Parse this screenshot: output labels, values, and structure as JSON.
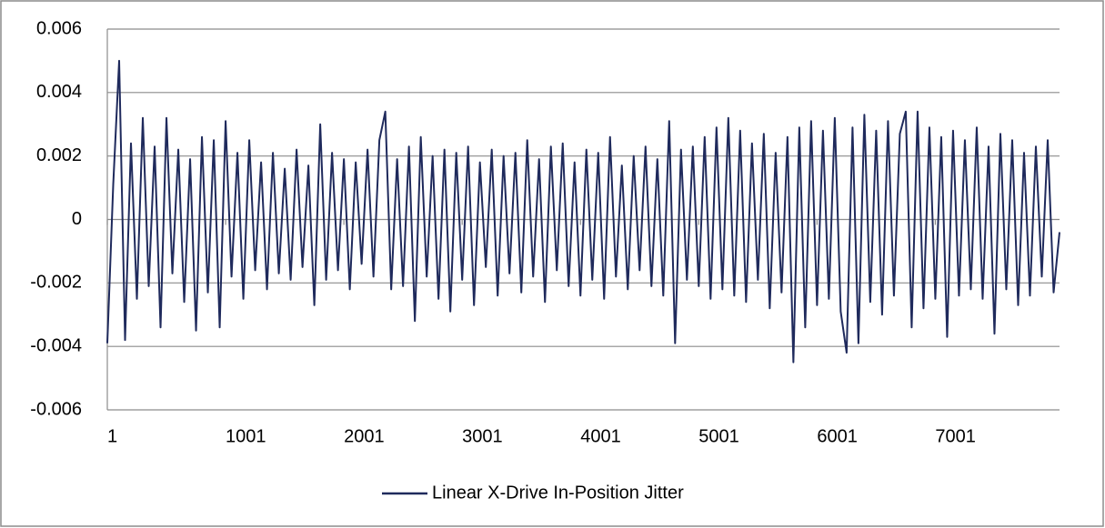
{
  "chart_data": {
    "type": "line",
    "x": [
      1,
      51,
      101,
      151,
      201,
      251,
      301,
      351,
      401,
      451,
      501,
      551,
      601,
      651,
      701,
      751,
      801,
      851,
      901,
      951,
      1001,
      1051,
      1101,
      1151,
      1201,
      1251,
      1301,
      1351,
      1401,
      1451,
      1501,
      1551,
      1601,
      1651,
      1701,
      1751,
      1801,
      1851,
      1901,
      1951,
      2001,
      2051,
      2101,
      2151,
      2201,
      2251,
      2301,
      2351,
      2401,
      2451,
      2501,
      2551,
      2601,
      2651,
      2701,
      2751,
      2801,
      2851,
      2901,
      2951,
      3001,
      3051,
      3101,
      3151,
      3201,
      3251,
      3301,
      3351,
      3401,
      3451,
      3501,
      3551,
      3601,
      3651,
      3701,
      3751,
      3801,
      3851,
      3901,
      3951,
      4001,
      4051,
      4101,
      4151,
      4201,
      4251,
      4301,
      4351,
      4401,
      4451,
      4501,
      4551,
      4601,
      4651,
      4701,
      4751,
      4801,
      4851,
      4901,
      4951,
      5001,
      5051,
      5101,
      5151,
      5201,
      5251,
      5301,
      5351,
      5401,
      5451,
      5501,
      5551,
      5601,
      5651,
      5701,
      5751,
      5801,
      5851,
      5901,
      5951,
      6001,
      6051,
      6101,
      6151,
      6201,
      6251,
      6301,
      6351,
      6401,
      6451,
      6501,
      6551,
      6601,
      6651,
      6701,
      6751,
      6801,
      6851,
      6901,
      6951,
      7001,
      7051,
      7101,
      7151,
      7201,
      7251,
      7301,
      7351,
      7401,
      7451,
      7501,
      7551,
      7601,
      7651,
      7701,
      7751,
      7801,
      7851,
      7901,
      7951,
      8001,
      8051
    ],
    "series": [
      {
        "name": "Linear X-Drive In-Position Jitter",
        "color": "#1f2a5c",
        "values": [
          -0.0039,
          0.0011,
          0.005,
          -0.0038,
          0.0024,
          -0.0025,
          0.0032,
          -0.0021,
          0.0023,
          -0.0034,
          0.0032,
          -0.0017,
          0.0022,
          -0.0026,
          0.0019,
          -0.0035,
          0.0026,
          -0.0023,
          0.0025,
          -0.0034,
          0.0031,
          -0.0018,
          0.0021,
          -0.0025,
          0.0025,
          -0.0016,
          0.0018,
          -0.0022,
          0.0021,
          -0.0017,
          0.0016,
          -0.0019,
          0.0022,
          -0.0015,
          0.0017,
          -0.0027,
          0.003,
          -0.0019,
          0.0021,
          -0.0016,
          0.0019,
          -0.0022,
          0.0018,
          -0.0014,
          0.0022,
          -0.0018,
          0.0025,
          0.0034,
          -0.0022,
          0.0019,
          -0.0021,
          0.0023,
          -0.0032,
          0.0026,
          -0.0018,
          0.002,
          -0.0025,
          0.0022,
          -0.0029,
          0.0021,
          -0.0019,
          0.0023,
          -0.0027,
          0.0018,
          -0.0015,
          0.0022,
          -0.0024,
          0.002,
          -0.0017,
          0.0021,
          -0.0023,
          0.0025,
          -0.0018,
          0.0019,
          -0.0026,
          0.0023,
          -0.0016,
          0.0024,
          -0.0021,
          0.0018,
          -0.0024,
          0.0022,
          -0.0019,
          0.0021,
          -0.0025,
          0.0026,
          -0.0018,
          0.0017,
          -0.0022,
          0.002,
          -0.0016,
          0.0023,
          -0.0021,
          0.0019,
          -0.0024,
          0.0031,
          -0.0039,
          0.0022,
          -0.0019,
          0.0023,
          -0.0021,
          0.0026,
          -0.0025,
          0.0029,
          -0.0022,
          0.0032,
          -0.0024,
          0.0028,
          -0.0026,
          0.0024,
          -0.0019,
          0.0027,
          -0.0028,
          0.0021,
          -0.0023,
          0.0026,
          -0.0045,
          0.0029,
          -0.0034,
          0.0031,
          -0.0027,
          0.0028,
          -0.0025,
          0.0032,
          -0.0029,
          -0.0042,
          0.0029,
          -0.0039,
          0.0033,
          -0.0026,
          0.0028,
          -0.003,
          0.0031,
          -0.0024,
          0.0027,
          0.0034,
          -0.0034,
          0.0034,
          -0.0028,
          0.0029,
          -0.0025,
          0.0026,
          -0.0037,
          0.0028,
          -0.0024,
          0.0025,
          -0.0022,
          0.0029,
          -0.0025,
          0.0023,
          -0.0036,
          0.0027,
          -0.0022,
          0.0025,
          -0.0027,
          0.0021,
          -0.0024,
          0.0023,
          -0.0018,
          0.0025,
          -0.0023,
          -0.0004
        ]
      }
    ],
    "xlim": [
      1,
      8051
    ],
    "xticks": [
      1,
      1001,
      2001,
      3001,
      4001,
      5001,
      6001,
      7001
    ],
    "ylim": [
      -0.006,
      0.006
    ],
    "yticks": [
      -0.006,
      -0.004,
      -0.002,
      0,
      0.002,
      0.004,
      0.006
    ],
    "grid": true,
    "legend": "bottom"
  }
}
